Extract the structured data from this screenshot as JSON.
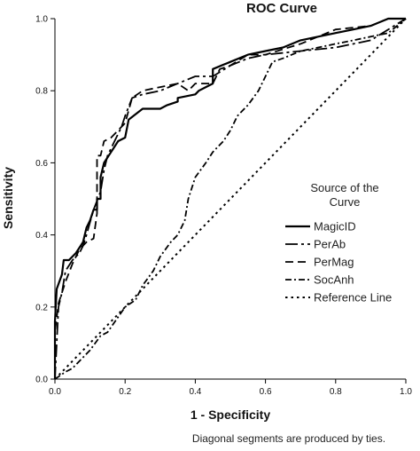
{
  "chart_data": {
    "type": "line",
    "title": "ROC Curve",
    "xlabel": "1 - Specificity",
    "ylabel": "Sensitivity",
    "xlim": [
      0,
      1
    ],
    "ylim": [
      0,
      1
    ],
    "x_ticks": [
      "0.0",
      "0.2",
      "0.4",
      "0.6",
      "0.8",
      "1.0"
    ],
    "y_ticks": [
      "0.0",
      "0.2",
      "0.4",
      "0.6",
      "0.8",
      "1.0"
    ],
    "grid": false,
    "legend": {
      "title_lines": [
        "Source of the",
        "Curve"
      ],
      "placement": "right-middle"
    },
    "footnote": "Diagonal segments are produced by ties.",
    "series": [
      {
        "name": "MagicID",
        "style": "solid",
        "width": 2.2,
        "color": "#000000",
        "points": [
          [
            0.0,
            0.0
          ],
          [
            0.0,
            0.16
          ],
          [
            0.005,
            0.25
          ],
          [
            0.02,
            0.29
          ],
          [
            0.025,
            0.33
          ],
          [
            0.04,
            0.33
          ],
          [
            0.06,
            0.35
          ],
          [
            0.08,
            0.38
          ],
          [
            0.09,
            0.42
          ],
          [
            0.1,
            0.44
          ],
          [
            0.11,
            0.47
          ],
          [
            0.12,
            0.47
          ],
          [
            0.12,
            0.5
          ],
          [
            0.13,
            0.5
          ],
          [
            0.13,
            0.56
          ],
          [
            0.14,
            0.6
          ],
          [
            0.16,
            0.63
          ],
          [
            0.18,
            0.66
          ],
          [
            0.2,
            0.67
          ],
          [
            0.21,
            0.72
          ],
          [
            0.25,
            0.75
          ],
          [
            0.3,
            0.75
          ],
          [
            0.32,
            0.76
          ],
          [
            0.35,
            0.77
          ],
          [
            0.35,
            0.78
          ],
          [
            0.4,
            0.79
          ],
          [
            0.41,
            0.8
          ],
          [
            0.43,
            0.81
          ],
          [
            0.45,
            0.82
          ],
          [
            0.45,
            0.86
          ],
          [
            0.5,
            0.88
          ],
          [
            0.55,
            0.9
          ],
          [
            0.6,
            0.91
          ],
          [
            0.65,
            0.92
          ],
          [
            0.7,
            0.94
          ],
          [
            0.75,
            0.95
          ],
          [
            0.8,
            0.96
          ],
          [
            0.85,
            0.97
          ],
          [
            0.9,
            0.98
          ],
          [
            0.95,
            1.0
          ],
          [
            1.0,
            1.0
          ]
        ]
      },
      {
        "name": "PerAb",
        "style": "longdash-dot",
        "width": 1.8,
        "color": "#000000",
        "points": [
          [
            0.0,
            0.0
          ],
          [
            0.01,
            0.2
          ],
          [
            0.02,
            0.24
          ],
          [
            0.03,
            0.3
          ],
          [
            0.05,
            0.33
          ],
          [
            0.07,
            0.35
          ],
          [
            0.08,
            0.37
          ],
          [
            0.09,
            0.4
          ],
          [
            0.11,
            0.47
          ],
          [
            0.13,
            0.52
          ],
          [
            0.14,
            0.58
          ],
          [
            0.15,
            0.62
          ],
          [
            0.17,
            0.66
          ],
          [
            0.19,
            0.7
          ],
          [
            0.2,
            0.73
          ],
          [
            0.22,
            0.78
          ],
          [
            0.25,
            0.79
          ],
          [
            0.3,
            0.8
          ],
          [
            0.35,
            0.82
          ],
          [
            0.4,
            0.84
          ],
          [
            0.45,
            0.84
          ],
          [
            0.5,
            0.87
          ],
          [
            0.55,
            0.89
          ],
          [
            0.6,
            0.9
          ],
          [
            0.7,
            0.91
          ],
          [
            0.8,
            0.92
          ],
          [
            0.9,
            0.94
          ],
          [
            1.0,
            1.0
          ]
        ]
      },
      {
        "name": "PerMag",
        "style": "dashed",
        "width": 1.8,
        "color": "#000000",
        "points": [
          [
            0.0,
            0.0
          ],
          [
            0.0,
            0.13
          ],
          [
            0.01,
            0.21
          ],
          [
            0.03,
            0.27
          ],
          [
            0.05,
            0.32
          ],
          [
            0.07,
            0.36
          ],
          [
            0.09,
            0.38
          ],
          [
            0.11,
            0.39
          ],
          [
            0.12,
            0.46
          ],
          [
            0.12,
            0.62
          ],
          [
            0.13,
            0.62
          ],
          [
            0.14,
            0.66
          ],
          [
            0.16,
            0.67
          ],
          [
            0.2,
            0.71
          ],
          [
            0.22,
            0.78
          ],
          [
            0.25,
            0.8
          ],
          [
            0.3,
            0.81
          ],
          [
            0.35,
            0.82
          ],
          [
            0.38,
            0.8
          ],
          [
            0.4,
            0.82
          ],
          [
            0.45,
            0.82
          ],
          [
            0.47,
            0.86
          ],
          [
            0.5,
            0.87
          ],
          [
            0.55,
            0.9
          ],
          [
            0.6,
            0.9
          ],
          [
            0.7,
            0.93
          ],
          [
            0.75,
            0.95
          ],
          [
            0.8,
            0.97
          ],
          [
            0.9,
            0.98
          ],
          [
            0.95,
            1.0
          ],
          [
            1.0,
            1.0
          ]
        ]
      },
      {
        "name": "SocAnh",
        "style": "dash-dot",
        "width": 1.8,
        "color": "#000000",
        "points": [
          [
            0.0,
            0.0
          ],
          [
            0.03,
            0.02
          ],
          [
            0.05,
            0.03
          ],
          [
            0.08,
            0.06
          ],
          [
            0.1,
            0.08
          ],
          [
            0.13,
            0.12
          ],
          [
            0.15,
            0.13
          ],
          [
            0.2,
            0.2
          ],
          [
            0.23,
            0.22
          ],
          [
            0.25,
            0.26
          ],
          [
            0.28,
            0.3
          ],
          [
            0.3,
            0.34
          ],
          [
            0.33,
            0.38
          ],
          [
            0.35,
            0.4
          ],
          [
            0.37,
            0.44
          ],
          [
            0.38,
            0.5
          ],
          [
            0.4,
            0.56
          ],
          [
            0.43,
            0.6
          ],
          [
            0.45,
            0.63
          ],
          [
            0.48,
            0.66
          ],
          [
            0.5,
            0.69
          ],
          [
            0.52,
            0.73
          ],
          [
            0.55,
            0.76
          ],
          [
            0.58,
            0.8
          ],
          [
            0.6,
            0.84
          ],
          [
            0.62,
            0.88
          ],
          [
            0.65,
            0.89
          ],
          [
            0.7,
            0.91
          ],
          [
            0.75,
            0.92
          ],
          [
            0.8,
            0.93
          ],
          [
            0.85,
            0.94
          ],
          [
            0.9,
            0.95
          ],
          [
            0.95,
            0.96
          ],
          [
            1.0,
            1.0
          ]
        ]
      },
      {
        "name": "Reference Line",
        "style": "dotted",
        "width": 2.0,
        "color": "#000000",
        "points": [
          [
            0.0,
            0.0
          ],
          [
            1.0,
            1.0
          ]
        ]
      }
    ]
  }
}
